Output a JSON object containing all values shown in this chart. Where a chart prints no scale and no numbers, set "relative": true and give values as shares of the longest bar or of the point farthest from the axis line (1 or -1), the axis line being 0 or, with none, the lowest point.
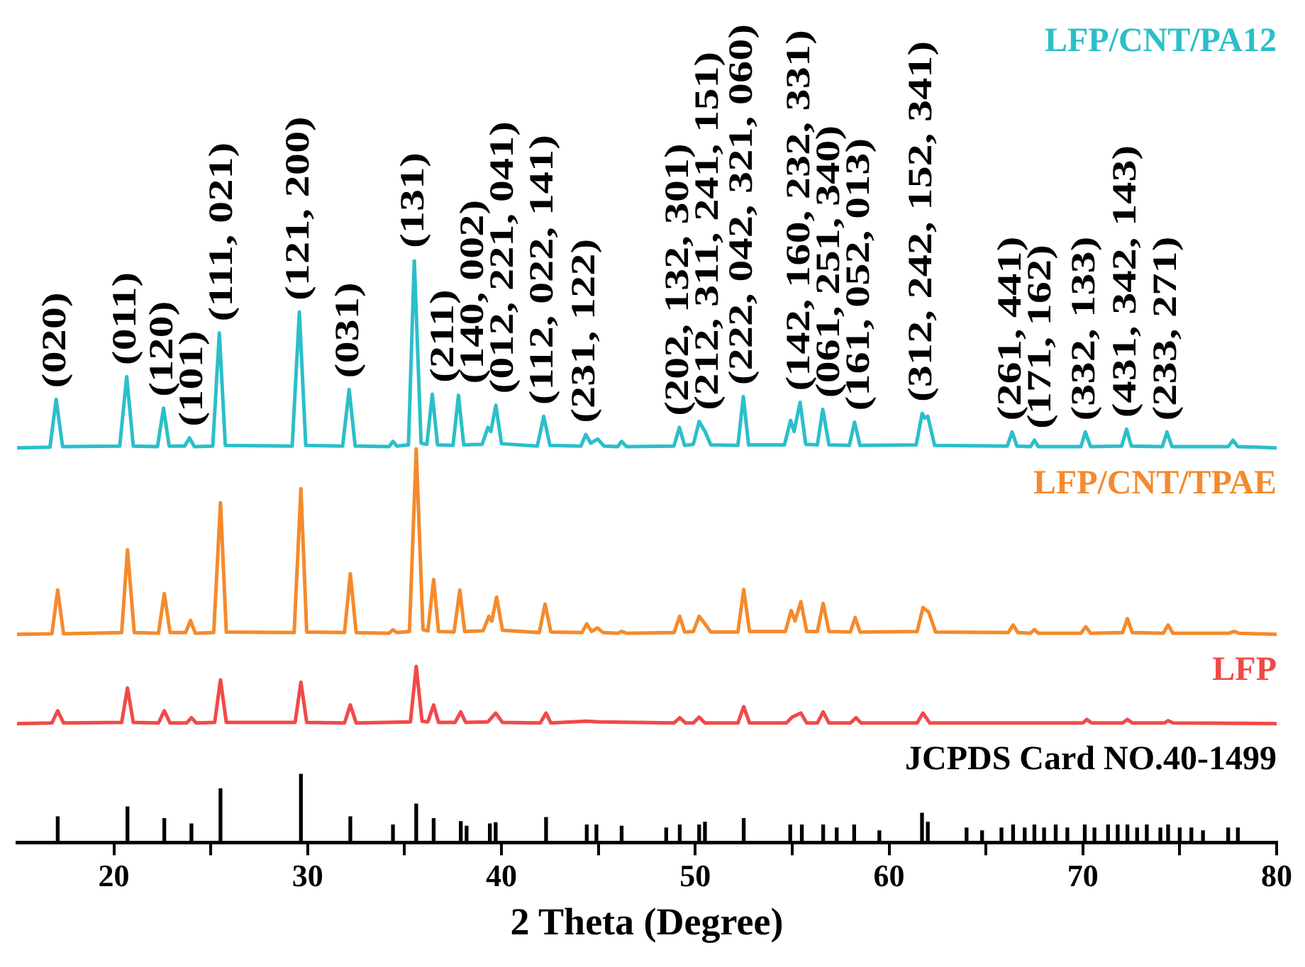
{
  "chart_data": {
    "type": "line",
    "relative": true,
    "xlabel": "2 Theta (Degree)",
    "xlim": [
      15,
      80
    ],
    "xticks": [
      20,
      {
        "value": 25,
        "label": null
      },
      30,
      {
        "value": 35,
        "label": null
      },
      40,
      {
        "value": 45,
        "label": null
      },
      50,
      {
        "value": 55,
        "label": null
      },
      60,
      {
        "value": 65,
        "label": null
      },
      70,
      {
        "value": 75,
        "label": null
      },
      80
    ],
    "series": [
      {
        "name": "LFP/CNT/PA12",
        "color": "#2bbfc9",
        "x": [
          15,
          16.7,
          17.02,
          17.35,
          20.3,
          20.66,
          21.0,
          22.25,
          22.56,
          22.85,
          23.65,
          23.9,
          24.15,
          25.1,
          25.44,
          25.75,
          29.2,
          29.57,
          29.9,
          31.8,
          32.14,
          32.45,
          34.2,
          34.4,
          34.6,
          35.2,
          35.5,
          35.85,
          36.15,
          36.43,
          36.7,
          37.5,
          37.78,
          38.05,
          39.0,
          39.3,
          39.45,
          39.71,
          40.0,
          41.85,
          42.18,
          42.5,
          44.1,
          44.35,
          44.6,
          44.96,
          45.3,
          46.0,
          46.2,
          46.45,
          48.9,
          49.18,
          49.45,
          49.9,
          50.2,
          50.5,
          50.8,
          52.2,
          52.48,
          52.75,
          54.6,
          54.92,
          55.1,
          55.41,
          55.7,
          56.3,
          56.58,
          56.9,
          57.95,
          58.22,
          58.5,
          61.4,
          61.71,
          61.85,
          62.0,
          62.35,
          66.1,
          66.35,
          66.6,
          67.3,
          67.5,
          67.7,
          69.9,
          70.13,
          70.4,
          72.0,
          72.26,
          72.5,
          74.1,
          74.34,
          74.6,
          77.5,
          77.75,
          78.0,
          80
        ],
        "values": [
          0.677,
          0.678,
          0.76,
          0.679,
          0.68,
          0.799,
          0.68,
          0.679,
          0.745,
          0.68,
          0.68,
          0.694,
          0.679,
          0.68,
          0.874,
          0.681,
          0.68,
          0.91,
          0.681,
          0.68,
          0.777,
          0.68,
          0.679,
          0.688,
          0.68,
          0.682,
          1.0,
          0.685,
          0.683,
          0.769,
          0.682,
          0.681,
          0.767,
          0.682,
          0.683,
          0.712,
          0.705,
          0.75,
          0.684,
          0.68,
          0.731,
          0.681,
          0.68,
          0.7,
          0.685,
          0.692,
          0.68,
          0.679,
          0.688,
          0.679,
          0.68,
          0.712,
          0.681,
          0.683,
          0.722,
          0.705,
          0.682,
          0.681,
          0.765,
          0.682,
          0.682,
          0.724,
          0.705,
          0.755,
          0.683,
          0.682,
          0.743,
          0.682,
          0.681,
          0.721,
          0.681,
          0.682,
          0.736,
          0.728,
          0.731,
          0.681,
          0.68,
          0.704,
          0.68,
          0.679,
          0.69,
          0.679,
          0.679,
          0.704,
          0.679,
          0.68,
          0.709,
          0.68,
          0.679,
          0.704,
          0.679,
          0.679,
          0.69,
          0.679,
          0.677
        ]
      },
      {
        "name": "LFP/CNT/TPAE",
        "color": "#f58a2c",
        "x": [
          15,
          16.8,
          17.1,
          17.4,
          20.4,
          20.7,
          21.05,
          22.3,
          22.6,
          22.9,
          23.7,
          23.95,
          24.2,
          25.15,
          25.5,
          25.8,
          29.3,
          29.65,
          29.95,
          31.9,
          32.2,
          32.5,
          34.2,
          34.4,
          34.6,
          35.25,
          35.6,
          35.95,
          36.2,
          36.5,
          36.75,
          37.55,
          37.85,
          38.1,
          39.05,
          39.35,
          39.5,
          39.75,
          40.05,
          41.95,
          42.25,
          42.55,
          44.15,
          44.4,
          44.65,
          44.95,
          45.25,
          46.0,
          46.2,
          46.45,
          48.9,
          49.2,
          49.45,
          49.9,
          50.2,
          50.5,
          50.8,
          52.2,
          52.5,
          52.8,
          54.65,
          54.95,
          55.15,
          55.45,
          55.75,
          56.3,
          56.6,
          56.9,
          58.0,
          58.25,
          58.5,
          61.45,
          61.75,
          62.05,
          62.4,
          66.15,
          66.4,
          66.65,
          67.3,
          67.5,
          67.7,
          69.9,
          70.15,
          70.4,
          72.05,
          72.3,
          72.55,
          74.15,
          74.4,
          74.65,
          77.55,
          77.8,
          78.05,
          80
        ],
        "values": [
          0.357,
          0.358,
          0.433,
          0.358,
          0.36,
          0.502,
          0.36,
          0.359,
          0.427,
          0.36,
          0.36,
          0.381,
          0.359,
          0.36,
          0.583,
          0.361,
          0.36,
          0.607,
          0.361,
          0.36,
          0.461,
          0.36,
          0.359,
          0.365,
          0.36,
          0.362,
          0.675,
          0.365,
          0.363,
          0.451,
          0.362,
          0.361,
          0.433,
          0.362,
          0.363,
          0.388,
          0.38,
          0.421,
          0.364,
          0.36,
          0.409,
          0.361,
          0.36,
          0.375,
          0.362,
          0.368,
          0.36,
          0.359,
          0.362,
          0.359,
          0.36,
          0.388,
          0.361,
          0.362,
          0.388,
          0.375,
          0.361,
          0.361,
          0.434,
          0.362,
          0.362,
          0.398,
          0.38,
          0.413,
          0.362,
          0.362,
          0.41,
          0.362,
          0.361,
          0.386,
          0.361,
          0.362,
          0.403,
          0.395,
          0.361,
          0.36,
          0.373,
          0.36,
          0.359,
          0.365,
          0.359,
          0.359,
          0.37,
          0.359,
          0.36,
          0.384,
          0.36,
          0.359,
          0.373,
          0.359,
          0.359,
          0.362,
          0.359,
          0.357
        ]
      },
      {
        "name": "LFP",
        "color": "#f24949",
        "x": [
          15,
          16.8,
          17.1,
          17.4,
          20.4,
          20.7,
          21.0,
          22.3,
          22.6,
          22.9,
          23.75,
          24.0,
          24.25,
          25.2,
          25.5,
          25.8,
          29.35,
          29.65,
          29.95,
          31.9,
          32.2,
          32.5,
          35.3,
          35.6,
          35.9,
          36.2,
          36.5,
          36.75,
          37.6,
          37.9,
          38.15,
          39.3,
          39.7,
          40.05,
          42.0,
          42.3,
          42.55,
          44.4,
          45.0,
          48.9,
          49.2,
          49.5,
          49.9,
          50.2,
          50.5,
          52.2,
          52.5,
          52.8,
          54.7,
          55.0,
          55.45,
          55.75,
          56.3,
          56.6,
          56.9,
          58.0,
          58.3,
          58.55,
          61.45,
          61.75,
          62.1,
          70.0,
          70.2,
          70.45,
          72.05,
          72.3,
          72.55,
          74.2,
          74.4,
          74.65,
          80
        ],
        "values": [
          0.204,
          0.205,
          0.226,
          0.205,
          0.206,
          0.265,
          0.206,
          0.205,
          0.226,
          0.205,
          0.205,
          0.214,
          0.205,
          0.206,
          0.279,
          0.206,
          0.206,
          0.275,
          0.206,
          0.205,
          0.236,
          0.205,
          0.207,
          0.302,
          0.208,
          0.207,
          0.236,
          0.206,
          0.206,
          0.224,
          0.206,
          0.207,
          0.222,
          0.206,
          0.205,
          0.222,
          0.205,
          0.208,
          0.207,
          0.205,
          0.214,
          0.205,
          0.205,
          0.215,
          0.205,
          0.205,
          0.233,
          0.205,
          0.205,
          0.215,
          0.222,
          0.205,
          0.205,
          0.224,
          0.205,
          0.205,
          0.214,
          0.205,
          0.205,
          0.222,
          0.205,
          0.205,
          0.211,
          0.205,
          0.205,
          0.211,
          0.205,
          0.205,
          0.209,
          0.205,
          0.204
        ]
      },
      {
        "name": "JCPDS Card NO.40-1499",
        "type": "bar",
        "color": "#000000",
        "x": [
          17.1,
          20.7,
          22.6,
          24.0,
          25.5,
          29.65,
          32.2,
          34.4,
          35.6,
          36.5,
          37.9,
          38.2,
          39.4,
          39.7,
          42.3,
          44.4,
          44.9,
          46.2,
          48.5,
          49.2,
          50.2,
          50.5,
          52.5,
          54.9,
          55.5,
          56.6,
          57.3,
          58.2,
          59.5,
          61.7,
          62.0,
          64.0,
          64.8,
          65.8,
          66.4,
          67.0,
          67.5,
          68.0,
          68.6,
          69.2,
          70.1,
          70.6,
          71.3,
          71.8,
          72.3,
          72.8,
          73.3,
          74.0,
          74.4,
          75.0,
          75.6,
          76.2,
          77.5,
          78.0
        ],
        "values": [
          0.044,
          0.061,
          0.041,
          0.032,
          0.092,
          0.117,
          0.044,
          0.03,
          0.066,
          0.041,
          0.036,
          0.028,
          0.032,
          0.034,
          0.043,
          0.03,
          0.03,
          0.028,
          0.025,
          0.03,
          0.03,
          0.035,
          0.041,
          0.03,
          0.03,
          0.03,
          0.025,
          0.03,
          0.02,
          0.05,
          0.035,
          0.025,
          0.02,
          0.025,
          0.03,
          0.025,
          0.03,
          0.025,
          0.03,
          0.025,
          0.03,
          0.025,
          0.03,
          0.03,
          0.03,
          0.025,
          0.03,
          0.025,
          0.03,
          0.025,
          0.025,
          0.02,
          0.025,
          0.025
        ]
      }
    ],
    "annotations": [
      {
        "text": "(020)",
        "x": 17.02,
        "y": 0.76
      },
      {
        "text": "(011)",
        "x": 20.66,
        "y": 0.799
      },
      {
        "text": "(120)",
        "x": 22.56,
        "y": 0.745
      },
      {
        "text": "(101)",
        "x": 23.9,
        "y": 0.694
      },
      {
        "text": "(111, 021)",
        "x": 25.44,
        "y": 0.874
      },
      {
        "text": "(121, 200)",
        "x": 29.57,
        "y": 0.91
      },
      {
        "text": "(031)",
        "x": 32.14,
        "y": 0.777
      },
      {
        "text": "(131)",
        "x": 35.5,
        "y": 1.0
      },
      {
        "text": "(211)",
        "x": 36.43,
        "y": 0.769
      },
      {
        "text": "(140, 002)",
        "x": 37.78,
        "y": 0.767
      },
      {
        "text": "(012, 221, 041)",
        "x": 39.71,
        "y": 0.75
      },
      {
        "text": "(112, 022, 141)",
        "x": 42.18,
        "y": 0.731
      },
      {
        "text": "(231, 122)",
        "x": 44.35,
        "y": 0.7
      },
      {
        "text": "(202, 132, 301)",
        "x": 49.18,
        "y": 0.712
      },
      {
        "text": "(212, 311, 241, 151)",
        "x": 50.2,
        "y": 0.722
      },
      {
        "text": "(222, 042, 321, 060)",
        "x": 52.48,
        "y": 0.765
      },
      {
        "text": "(142, 160, 232, 331)",
        "x": 55.41,
        "y": 0.755
      },
      {
        "text": "(061, 251, 340)",
        "x": 56.58,
        "y": 0.743
      },
      {
        "text": "(161, 052, 013)",
        "x": 58.22,
        "y": 0.721
      },
      {
        "text": "(312, 242, 152, 341)",
        "x": 61.71,
        "y": 0.736
      },
      {
        "text": "(261, 441)",
        "x": 66.35,
        "y": 0.704
      },
      {
        "text": "(171, 162)",
        "x": 67.5,
        "y": 0.69
      },
      {
        "text": "(332, 133)",
        "x": 70.13,
        "y": 0.704
      },
      {
        "text": "(431, 342, 143)",
        "x": 72.26,
        "y": 0.709
      },
      {
        "text": "(233, 271)",
        "x": 74.34,
        "y": 0.704
      }
    ]
  }
}
